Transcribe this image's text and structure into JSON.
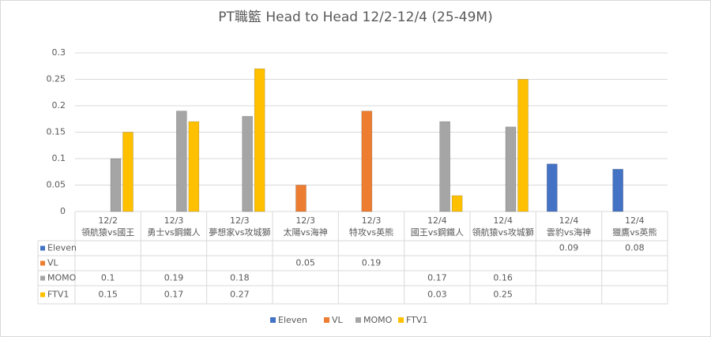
{
  "chart_data": {
    "type": "bar",
    "title": "PT職籃 Head to Head 12/2-12/4 (25-49M)",
    "categories": [
      [
        "12/2",
        "領航猿vs國王"
      ],
      [
        "12/3",
        "勇士vs鋼鐵人"
      ],
      [
        "12/3",
        "夢想家vs攻城獅"
      ],
      [
        "12/3",
        "太陽vs海神"
      ],
      [
        "12/3",
        "特攻vs英熊"
      ],
      [
        "12/4",
        "國王vs鋼鐵人"
      ],
      [
        "12/4",
        "領航猿vs攻城獅"
      ],
      [
        "12/4",
        "雲豹vs海神"
      ],
      [
        "12/4",
        "獵鷹vs英熊"
      ]
    ],
    "series": [
      {
        "name": "Eleven",
        "color": "#4472c4",
        "values": [
          null,
          null,
          null,
          null,
          null,
          null,
          null,
          0.09,
          0.08
        ]
      },
      {
        "name": "VL",
        "color": "#ed7d31",
        "values": [
          null,
          null,
          null,
          0.05,
          0.19,
          null,
          null,
          null,
          null
        ]
      },
      {
        "name": "MOMO",
        "color": "#a5a5a5",
        "values": [
          0.1,
          0.19,
          0.18,
          null,
          null,
          0.17,
          0.16,
          null,
          null
        ]
      },
      {
        "name": "FTV1",
        "color": "#ffc000",
        "values": [
          0.15,
          0.17,
          0.27,
          null,
          null,
          0.03,
          0.25,
          null,
          null
        ]
      }
    ],
    "ylim": [
      0,
      0.3
    ],
    "yticks": [
      0,
      0.05,
      0.1,
      0.15,
      0.2,
      0.25,
      0.3
    ],
    "grid": true,
    "legend": "bottom",
    "data_table": true
  }
}
